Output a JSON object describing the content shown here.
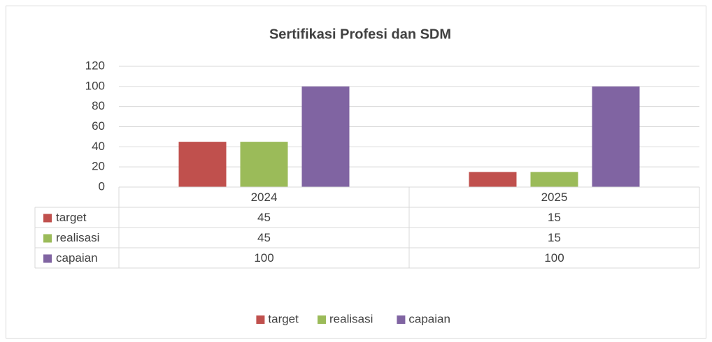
{
  "chart_data": {
    "type": "bar",
    "title": "Sertifikasi Profesi dan SDM",
    "categories": [
      "2024",
      "2025"
    ],
    "series": [
      {
        "name": "target",
        "color": "#c0504d",
        "values": [
          45,
          15
        ]
      },
      {
        "name": "realisasi",
        "color": "#9bbb59",
        "values": [
          45,
          15
        ]
      },
      {
        "name": "capaian",
        "color": "#8064a2",
        "values": [
          100,
          100
        ]
      }
    ],
    "ylim": [
      0,
      120
    ],
    "yticks": [
      0,
      20,
      40,
      60,
      80,
      100,
      120
    ],
    "grid": true,
    "legend": "bottom",
    "data_table": true
  }
}
